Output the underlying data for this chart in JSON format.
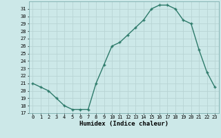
{
  "x": [
    0,
    1,
    2,
    3,
    4,
    5,
    6,
    7,
    8,
    9,
    10,
    11,
    12,
    13,
    14,
    15,
    16,
    17,
    18,
    19,
    20,
    21,
    22,
    23
  ],
  "y": [
    21,
    20.5,
    20,
    19,
    18,
    17.5,
    17.5,
    17.5,
    21,
    23.5,
    26,
    26.5,
    27.5,
    28.5,
    29.5,
    31,
    31.5,
    31.5,
    31,
    29.5,
    29,
    25.5,
    22.5,
    20.5
  ],
  "xlabel": "Humidex (Indice chaleur)",
  "ylim": [
    17,
    32
  ],
  "xlim": [
    -0.5,
    23.5
  ],
  "line_color": "#2d7a6a",
  "bg_color": "#cce8e8",
  "grid_color": "#b8d4d4",
  "yticks": [
    17,
    18,
    19,
    20,
    21,
    22,
    23,
    24,
    25,
    26,
    27,
    28,
    29,
    30,
    31
  ],
  "xticks": [
    0,
    1,
    2,
    3,
    4,
    5,
    6,
    7,
    8,
    9,
    10,
    11,
    12,
    13,
    14,
    15,
    16,
    17,
    18,
    19,
    20,
    21,
    22,
    23
  ],
  "tick_fontsize": 5.0,
  "xlabel_fontsize": 6.5
}
